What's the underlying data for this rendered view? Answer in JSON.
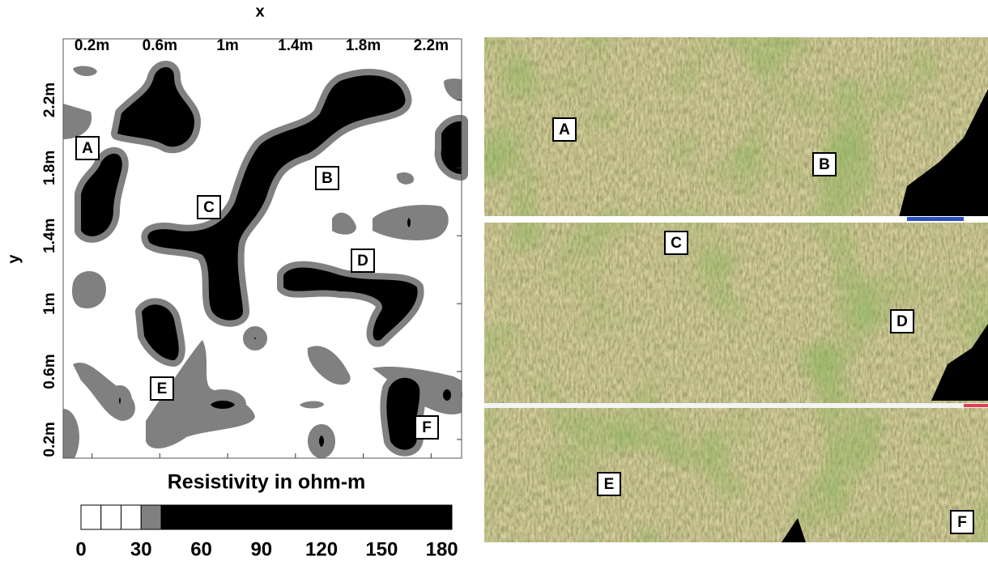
{
  "map": {
    "x_label": "x",
    "y_label": "y",
    "xlim": [
      0.03,
      2.38
    ],
    "ylim": [
      0.09,
      2.56
    ],
    "x_ticks": [
      {
        "value": 0.2,
        "label": "0.2m"
      },
      {
        "value": 0.6,
        "label": "0.6m"
      },
      {
        "value": 1,
        "label": "1m"
      },
      {
        "value": 1.4,
        "label": "1.4m"
      },
      {
        "value": 1.8,
        "label": "1.8m"
      },
      {
        "value": 2.2,
        "label": "2.2m"
      }
    ],
    "y_ticks": [
      {
        "value": 0.2,
        "label": "0.2m"
      },
      {
        "value": 0.6,
        "label": "0.6m"
      },
      {
        "value": 1,
        "label": "1m"
      },
      {
        "value": 1.4,
        "label": "1.4m"
      },
      {
        "value": 1.8,
        "label": "1.8m"
      },
      {
        "value": 2.2,
        "label": "2.2m"
      }
    ],
    "labels": [
      "A",
      "B",
      "C",
      "D",
      "E",
      "F"
    ]
  },
  "colorbar": {
    "title": "Resistivity in ohm-m",
    "bins": [
      0,
      10,
      20,
      30,
      40,
      185
    ],
    "colors": [
      "#ffffff",
      "#ffffff",
      "#ffffff",
      "#808080",
      "#000000"
    ],
    "ticks": [
      0,
      30,
      60,
      90,
      120,
      150,
      180
    ]
  },
  "photo": {
    "labels": [
      "A",
      "B",
      "C",
      "D",
      "E",
      "F"
    ]
  }
}
